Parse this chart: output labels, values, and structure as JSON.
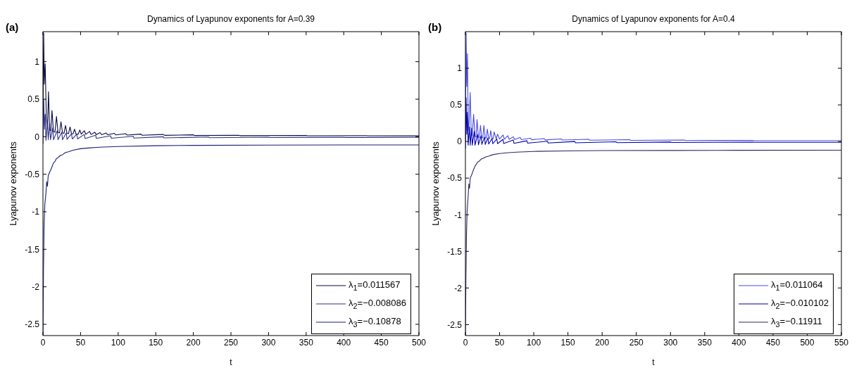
{
  "chart_data": [
    {
      "type": "line",
      "title": "Dynamics of Lyapunov exponents for A=0.39",
      "xlabel": "t",
      "ylabel": "Lyapunov exponents",
      "annotations": [
        "(a)"
      ],
      "xlim": [
        0,
        500
      ],
      "xticks": [
        0,
        50,
        100,
        150,
        200,
        250,
        300,
        350,
        400,
        450,
        500
      ],
      "ylim": [
        -2.65,
        1.4
      ],
      "yticks": [
        -2.5,
        -2,
        -1.5,
        -1,
        -0.5,
        0,
        0.5,
        1
      ],
      "grid": false,
      "legend": "bottom right",
      "marker": "none",
      "line_style": "solid",
      "series": [
        {
          "name": "λ$_{1}$=0.011567",
          "color": "#0a0a40",
          "x": [
            0,
            0.5,
            1,
            1.8,
            3,
            4.5,
            6,
            7.4,
            8.8,
            10.5,
            12,
            14,
            16,
            18,
            20,
            22,
            24,
            26,
            28,
            30,
            32,
            34,
            36,
            38,
            40,
            42,
            44,
            47,
            49,
            51,
            55,
            57,
            62,
            64,
            69,
            71,
            76,
            78,
            84,
            86,
            95,
            97,
            110,
            112,
            130,
            132,
            160,
            162,
            200,
            202,
            260,
            262,
            350,
            352,
            430,
            432,
            500
          ],
          "values": [
            0,
            0.9,
            1.38,
            0.7,
            0.97,
            0.25,
            0.12,
            0.6,
            0.1,
            0.08,
            0.35,
            0.07,
            0.06,
            0.27,
            0.06,
            0.05,
            0.2,
            0.05,
            0.045,
            0.15,
            0.045,
            0.04,
            0.13,
            0.04,
            0.038,
            0.1,
            0.036,
            0.035,
            0.09,
            0.034,
            0.08,
            0.032,
            0.07,
            0.03,
            0.06,
            0.028,
            0.055,
            0.027,
            0.05,
            0.026,
            0.045,
            0.024,
            0.04,
            0.022,
            0.035,
            0.02,
            0.03,
            0.018,
            0.025,
            0.016,
            0.02,
            0.014,
            0.017,
            0.013,
            0.015,
            0.012,
            0.011567
          ]
        },
        {
          "name": "λ$_{2}$=−0.008086",
          "color": "#303088",
          "x": [
            0,
            1,
            2,
            3,
            4,
            6,
            7,
            9,
            10,
            13,
            14,
            19,
            20,
            25,
            26,
            31,
            32,
            38,
            39,
            45,
            46,
            55,
            56,
            70,
            71,
            90,
            91,
            120,
            121,
            160,
            161,
            220,
            222,
            300,
            302,
            400,
            402,
            500
          ],
          "values": [
            -0.1,
            0.5,
            0.1,
            0.3,
            -0.05,
            0.2,
            -0.04,
            0.18,
            -0.04,
            0.12,
            -0.04,
            0.08,
            -0.04,
            0.06,
            -0.04,
            0.05,
            -0.035,
            0.04,
            -0.03,
            0.035,
            -0.03,
            0.03,
            -0.025,
            0.02,
            -0.022,
            0.012,
            -0.02,
            0.005,
            -0.018,
            0,
            -0.016,
            -0.004,
            -0.013,
            -0.006,
            -0.011,
            -0.007,
            -0.01,
            -0.008086
          ]
        },
        {
          "name": "λ$_{3}$=−0.10878",
          "color": "#1c1c78",
          "x": [
            0,
            0.7,
            1.5,
            2.5,
            4,
            5,
            6,
            7,
            9,
            10.5,
            12,
            14,
            16,
            18,
            20,
            23,
            26,
            30,
            34,
            40,
            50,
            60,
            75,
            100,
            150,
            200,
            300,
            400,
            500
          ],
          "values": [
            -2.64,
            -1.8,
            -1.2,
            -0.9,
            -0.75,
            -0.6,
            -0.66,
            -0.52,
            -0.47,
            -0.44,
            -0.4,
            -0.35,
            -0.33,
            -0.29,
            -0.28,
            -0.25,
            -0.24,
            -0.21,
            -0.2,
            -0.18,
            -0.16,
            -0.15,
            -0.14,
            -0.13,
            -0.12,
            -0.115,
            -0.112,
            -0.11,
            -0.10878
          ]
        }
      ]
    },
    {
      "type": "line",
      "title": "Dynamics of Lyapunov exponents for A=0.4",
      "xlabel": "t",
      "ylabel": "Lyapunov exponents",
      "annotations": [
        "(b)"
      ],
      "xlim": [
        0,
        550
      ],
      "xticks": [
        0,
        50,
        100,
        150,
        200,
        250,
        300,
        350,
        400,
        450,
        500,
        550
      ],
      "ylim": [
        -2.65,
        1.5
      ],
      "yticks": [
        -2.5,
        -2,
        -1.5,
        -1,
        -0.5,
        0,
        0.5,
        1
      ],
      "grid": false,
      "legend": "bottom right",
      "marker": "none",
      "line_style": "solid",
      "series": [
        {
          "name": "λ$_{1}$=0.011064",
          "color": "#4a4ae0",
          "x": [
            0,
            1,
            2,
            3,
            4,
            5,
            7,
            8.5,
            10,
            12,
            14,
            15.5,
            17,
            19,
            20.5,
            22,
            24,
            25.5,
            27,
            29,
            30.5,
            32,
            34,
            35.5,
            37,
            39,
            40.5,
            42,
            45,
            47,
            50,
            55,
            57,
            62,
            64,
            70,
            72,
            80,
            82,
            95,
            97,
            115,
            117,
            140,
            142,
            180,
            182,
            240,
            242,
            320,
            322,
            420,
            422,
            550
          ],
          "values": [
            0,
            1.48,
            0.75,
            1.2,
            0.3,
            0.15,
            0.67,
            0.12,
            0.08,
            0.37,
            0.07,
            0.06,
            0.3,
            0.06,
            0.05,
            0.22,
            0.05,
            0.05,
            0.22,
            0.05,
            0.045,
            0.17,
            0.045,
            0.04,
            0.15,
            0.04,
            0.038,
            0.13,
            0.036,
            0.1,
            0.034,
            0.09,
            0.032,
            0.08,
            0.03,
            0.065,
            0.028,
            0.055,
            0.026,
            0.045,
            0.024,
            0.04,
            0.022,
            0.035,
            0.02,
            0.03,
            0.018,
            0.025,
            0.016,
            0.02,
            0.014,
            0.016,
            0.012,
            0.011064
          ]
        },
        {
          "name": "λ$_{2}$=−0.010102",
          "color": "#0000b0",
          "x": [
            0,
            1,
            2,
            3,
            4,
            6,
            7,
            9,
            10,
            13,
            14,
            18,
            19,
            23,
            24,
            28,
            29,
            33,
            34,
            39,
            40,
            46,
            47,
            55,
            56,
            70,
            71,
            90,
            91,
            120,
            121,
            160,
            161,
            220,
            222,
            300,
            302,
            420,
            422,
            550
          ],
          "values": [
            -0.1,
            0.6,
            0.1,
            0.4,
            -0.05,
            0.2,
            -0.05,
            0.18,
            -0.05,
            0.14,
            -0.05,
            0.1,
            -0.045,
            0.08,
            -0.04,
            0.06,
            -0.04,
            0.05,
            -0.035,
            0.04,
            -0.03,
            0.035,
            -0.03,
            0.03,
            -0.028,
            0.02,
            -0.025,
            0.01,
            -0.022,
            0.004,
            -0.02,
            0,
            -0.018,
            -0.004,
            -0.015,
            -0.007,
            -0.013,
            -0.009,
            -0.011,
            -0.010102
          ]
        },
        {
          "name": "λ$_{3}$=−0.11911",
          "color": "#282868",
          "x": [
            0,
            0.7,
            1.5,
            2.5,
            4,
            5,
            6,
            7,
            9,
            10.5,
            12,
            14,
            16,
            18,
            20,
            23,
            26,
            30,
            34,
            40,
            50,
            60,
            75,
            100,
            150,
            200,
            300,
            400,
            550
          ],
          "values": [
            -2.64,
            -1.9,
            -1.3,
            -0.95,
            -0.75,
            -0.58,
            -0.64,
            -0.5,
            -0.46,
            -0.42,
            -0.38,
            -0.34,
            -0.31,
            -0.28,
            -0.27,
            -0.24,
            -0.23,
            -0.21,
            -0.2,
            -0.18,
            -0.165,
            -0.155,
            -0.145,
            -0.135,
            -0.128,
            -0.124,
            -0.122,
            -0.12,
            -0.11911
          ]
        }
      ]
    }
  ]
}
